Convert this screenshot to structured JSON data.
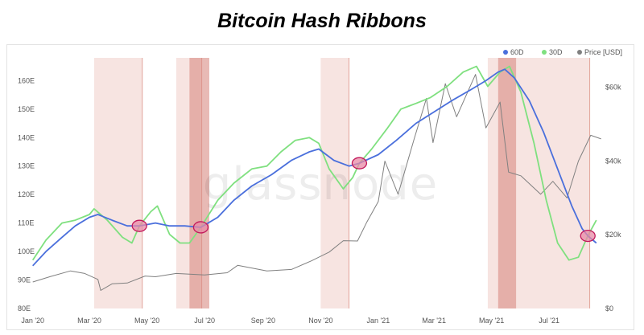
{
  "chart_data": {
    "type": "line",
    "title": "Bitcoin Hash Ribbons",
    "watermark": "glassnode",
    "x_ticks": [
      "Jan '20",
      "Mar '20",
      "May '20",
      "Jul '20",
      "Sep '20",
      "Nov '20",
      "Jan '21",
      "Mar '21",
      "May '21",
      "Jul '21"
    ],
    "x_tick_dates": [
      "2020-01-01",
      "2020-03-01",
      "2020-05-01",
      "2020-07-01",
      "2020-09-01",
      "2020-11-01",
      "2021-01-01",
      "2021-03-01",
      "2021-05-01",
      "2021-07-01"
    ],
    "xlim": [
      "2019-12-28",
      "2021-08-27"
    ],
    "y_left": {
      "ticks": [
        "80E",
        "90E",
        "100E",
        "110E",
        "120E",
        "130E",
        "140E",
        "150E",
        "160E"
      ],
      "values": [
        80,
        90,
        100,
        110,
        120,
        130,
        140,
        150,
        160
      ],
      "ylim": [
        80,
        168
      ]
    },
    "y_right": {
      "ticks": [
        "$0",
        "$20k",
        "$40k",
        "$60k"
      ],
      "values": [
        0,
        20000,
        40000,
        60000
      ],
      "ylim": [
        0,
        68000
      ]
    },
    "legend": {
      "placement": "top-right",
      "entries": [
        {
          "label": "60D",
          "color": "#4a6fdc"
        },
        {
          "label": "30D",
          "color": "#7fe07f"
        },
        {
          "label": "Price [USD]",
          "color": "#808080"
        }
      ]
    },
    "capitulation_periods": [
      {
        "start": "2020-03-06",
        "end": "2020-04-26"
      },
      {
        "start": "2020-06-01",
        "end": "2020-06-28"
      },
      {
        "start": "2020-11-01",
        "end": "2020-12-01"
      },
      {
        "start": "2021-04-27",
        "end": "2021-08-13"
      }
    ],
    "intense_periods": [
      {
        "start": "2020-06-15",
        "end": "2020-07-06"
      },
      {
        "start": "2021-05-08",
        "end": "2021-05-27"
      }
    ],
    "crossover_markers": [
      {
        "date": "2020-04-23",
        "value": 109
      },
      {
        "date": "2020-06-27",
        "value": 108.5
      },
      {
        "date": "2020-12-12",
        "value": 131
      },
      {
        "date": "2021-08-11",
        "value": 105.5
      }
    ],
    "series": [
      {
        "name": "60D",
        "axis": "left",
        "color": "#4a6fdc",
        "points": [
          [
            "2020-01-01",
            95
          ],
          [
            "2020-01-15",
            100
          ],
          [
            "2020-02-01",
            105
          ],
          [
            "2020-02-15",
            109
          ],
          [
            "2020-03-01",
            112
          ],
          [
            "2020-03-10",
            113
          ],
          [
            "2020-03-25",
            111
          ],
          [
            "2020-04-10",
            109
          ],
          [
            "2020-04-23",
            109
          ],
          [
            "2020-05-10",
            110
          ],
          [
            "2020-05-25",
            109
          ],
          [
            "2020-06-10",
            109
          ],
          [
            "2020-06-27",
            108.5
          ],
          [
            "2020-07-15",
            112
          ],
          [
            "2020-08-01",
            118
          ],
          [
            "2020-08-20",
            123
          ],
          [
            "2020-09-10",
            127
          ],
          [
            "2020-10-01",
            132
          ],
          [
            "2020-10-20",
            135
          ],
          [
            "2020-10-30",
            136
          ],
          [
            "2020-11-15",
            132
          ],
          [
            "2020-12-01",
            130
          ],
          [
            "2020-12-12",
            131
          ],
          [
            "2021-01-01",
            134
          ],
          [
            "2021-01-20",
            139
          ],
          [
            "2021-02-10",
            145
          ],
          [
            "2021-03-01",
            149
          ],
          [
            "2021-03-20",
            153
          ],
          [
            "2021-04-10",
            157
          ],
          [
            "2021-04-25",
            160
          ],
          [
            "2021-05-08",
            163
          ],
          [
            "2021-05-15",
            164
          ],
          [
            "2021-05-25",
            161
          ],
          [
            "2021-06-10",
            153
          ],
          [
            "2021-06-25",
            142
          ],
          [
            "2021-07-10",
            129
          ],
          [
            "2021-07-25",
            116
          ],
          [
            "2021-08-05",
            108
          ],
          [
            "2021-08-11",
            105.5
          ],
          [
            "2021-08-20",
            103
          ]
        ]
      },
      {
        "name": "30D",
        "axis": "left",
        "color": "#7fe07f",
        "points": [
          [
            "2020-01-01",
            97
          ],
          [
            "2020-01-15",
            104
          ],
          [
            "2020-02-01",
            110
          ],
          [
            "2020-02-15",
            111
          ],
          [
            "2020-03-01",
            113
          ],
          [
            "2020-03-06",
            115
          ],
          [
            "2020-03-20",
            111
          ],
          [
            "2020-04-05",
            105
          ],
          [
            "2020-04-15",
            103
          ],
          [
            "2020-04-23",
            109
          ],
          [
            "2020-05-05",
            114
          ],
          [
            "2020-05-12",
            116
          ],
          [
            "2020-05-25",
            106
          ],
          [
            "2020-06-05",
            103
          ],
          [
            "2020-06-15",
            103
          ],
          [
            "2020-06-27",
            108.5
          ],
          [
            "2020-07-15",
            118
          ],
          [
            "2020-08-01",
            124
          ],
          [
            "2020-08-20",
            129
          ],
          [
            "2020-09-05",
            130
          ],
          [
            "2020-09-20",
            135
          ],
          [
            "2020-10-05",
            139
          ],
          [
            "2020-10-20",
            140
          ],
          [
            "2020-10-30",
            138
          ],
          [
            "2020-11-10",
            129
          ],
          [
            "2020-11-25",
            122
          ],
          [
            "2020-12-05",
            126
          ],
          [
            "2020-12-12",
            131
          ],
          [
            "2020-12-25",
            136
          ],
          [
            "2021-01-10",
            143
          ],
          [
            "2021-01-25",
            150
          ],
          [
            "2021-02-10",
            152
          ],
          [
            "2021-02-25",
            154
          ],
          [
            "2021-03-15",
            158
          ],
          [
            "2021-04-01",
            163
          ],
          [
            "2021-04-15",
            165
          ],
          [
            "2021-04-27",
            158
          ],
          [
            "2021-05-10",
            163
          ],
          [
            "2021-05-20",
            165
          ],
          [
            "2021-06-01",
            156
          ],
          [
            "2021-06-15",
            138
          ],
          [
            "2021-06-28",
            118
          ],
          [
            "2021-07-10",
            103
          ],
          [
            "2021-07-22",
            97
          ],
          [
            "2021-08-01",
            98
          ],
          [
            "2021-08-11",
            105.5
          ],
          [
            "2021-08-20",
            111
          ]
        ]
      },
      {
        "name": "Price [USD]",
        "axis": "right",
        "color": "#808080",
        "points": [
          [
            "2020-01-01",
            7200
          ],
          [
            "2020-01-20",
            8700
          ],
          [
            "2020-02-10",
            10200
          ],
          [
            "2020-02-25",
            9500
          ],
          [
            "2020-03-10",
            7900
          ],
          [
            "2020-03-13",
            4900
          ],
          [
            "2020-03-25",
            6700
          ],
          [
            "2020-04-10",
            6900
          ],
          [
            "2020-04-29",
            8800
          ],
          [
            "2020-05-10",
            8600
          ],
          [
            "2020-06-01",
            9500
          ],
          [
            "2020-07-01",
            9100
          ],
          [
            "2020-07-25",
            9700
          ],
          [
            "2020-08-05",
            11700
          ],
          [
            "2020-09-05",
            10200
          ],
          [
            "2020-10-01",
            10600
          ],
          [
            "2020-10-22",
            12900
          ],
          [
            "2020-11-10",
            15300
          ],
          [
            "2020-11-25",
            18400
          ],
          [
            "2020-12-10",
            18300
          ],
          [
            "2020-12-20",
            23500
          ],
          [
            "2021-01-01",
            29000
          ],
          [
            "2021-01-08",
            40000
          ],
          [
            "2021-01-22",
            31000
          ],
          [
            "2021-02-08",
            46000
          ],
          [
            "2021-02-21",
            57000
          ],
          [
            "2021-02-28",
            45000
          ],
          [
            "2021-03-13",
            61000
          ],
          [
            "2021-03-25",
            52000
          ],
          [
            "2021-04-14",
            63500
          ],
          [
            "2021-04-25",
            49000
          ],
          [
            "2021-05-10",
            56000
          ],
          [
            "2021-05-19",
            37000
          ],
          [
            "2021-06-01",
            36000
          ],
          [
            "2021-06-22",
            31000
          ],
          [
            "2021-07-05",
            34500
          ],
          [
            "2021-07-20",
            30000
          ],
          [
            "2021-08-01",
            40000
          ],
          [
            "2021-08-14",
            47000
          ],
          [
            "2021-08-25",
            46000
          ]
        ]
      }
    ]
  }
}
